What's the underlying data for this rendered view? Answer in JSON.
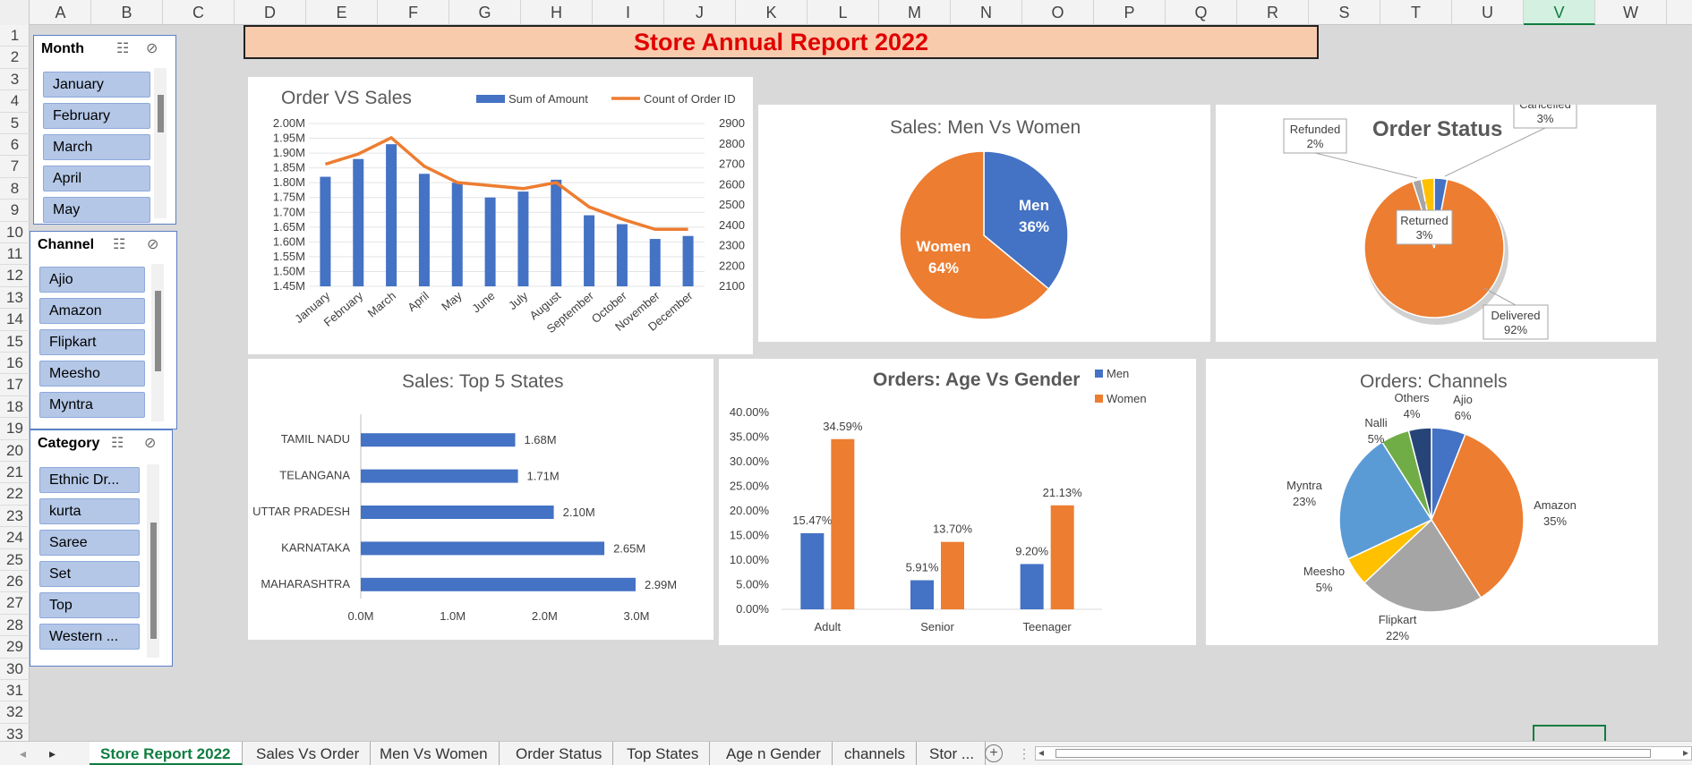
{
  "columns": [
    "A",
    "B",
    "C",
    "D",
    "E",
    "F",
    "G",
    "H",
    "I",
    "J",
    "K",
    "L",
    "M",
    "N",
    "O",
    "P",
    "Q",
    "R",
    "S",
    "T",
    "U",
    "V",
    "W"
  ],
  "selected_column": "V",
  "rows": [
    "1",
    "2",
    "3",
    "4",
    "5",
    "6",
    "7",
    "8",
    "9",
    "10",
    "11",
    "12",
    "13",
    "14",
    "15",
    "16",
    "17",
    "18",
    "19",
    "20",
    "21",
    "22",
    "23",
    "24",
    "25",
    "26",
    "27",
    "28",
    "29",
    "30",
    "31",
    "32",
    "33"
  ],
  "report_title": "Store Annual Report 2022",
  "slicers": {
    "month": {
      "title": "Month",
      "items": [
        "January",
        "February",
        "March",
        "April",
        "May"
      ]
    },
    "channel": {
      "title": "Channel",
      "items": [
        "Ajio",
        "Amazon",
        "Flipkart",
        "Meesho",
        "Myntra"
      ]
    },
    "category": {
      "title": "Category",
      "items": [
        "Ethnic Dr...",
        "kurta",
        "Saree",
        "Set",
        "Top",
        "Western ..."
      ]
    }
  },
  "chart_data": [
    {
      "id": "order_vs_sales",
      "type": "bar+line",
      "title": "Order VS Sales",
      "categories": [
        "January",
        "February",
        "March",
        "April",
        "May",
        "June",
        "July",
        "August",
        "September",
        "October",
        "November",
        "December"
      ],
      "series": [
        {
          "name": "Sum of Amount",
          "type": "bar",
          "axis": "left",
          "values": [
            1.82,
            1.88,
            1.93,
            1.83,
            1.8,
            1.75,
            1.77,
            1.81,
            1.69,
            1.66,
            1.61,
            1.62
          ]
        },
        {
          "name": "Count of Order ID",
          "type": "line",
          "axis": "right",
          "values": [
            2700,
            2750,
            2830,
            2690,
            2610,
            2595,
            2580,
            2610,
            2490,
            2430,
            2380,
            2380
          ]
        }
      ],
      "y_left_ticks": [
        "2.00M",
        "1.95M",
        "1.90M",
        "1.85M",
        "1.80M",
        "1.75M",
        "1.70M",
        "1.65M",
        "1.60M",
        "1.55M",
        "1.50M",
        "1.45M"
      ],
      "y_left_range": [
        1.45,
        2.0
      ],
      "y_right_ticks": [
        "2900",
        "2800",
        "2700",
        "2600",
        "2500",
        "2400",
        "2300",
        "2200",
        "2100"
      ],
      "y_right_range": [
        2100,
        2900
      ],
      "bar_color": "#4472c4",
      "line_color": "#ed7d31",
      "legend": "top"
    },
    {
      "id": "men_vs_women",
      "type": "pie",
      "title": "Sales: Men Vs Women",
      "slices": [
        {
          "label": "Men",
          "value": 36,
          "text": "36%",
          "color": "#4472c4"
        },
        {
          "label": "Women",
          "value": 64,
          "text": "64%",
          "color": "#ed7d31"
        }
      ]
    },
    {
      "id": "order_status",
      "type": "pie",
      "title": "Order Status",
      "slices": [
        {
          "label": "Cancelled",
          "value": 3,
          "text": "3%",
          "color": "#4472c4"
        },
        {
          "label": "Delivered",
          "value": 92,
          "text": "92%",
          "color": "#ed7d31"
        },
        {
          "label": "Refunded",
          "value": 2,
          "text": "2%",
          "color": "#a5a5a5"
        },
        {
          "label": "Returned",
          "value": 3,
          "text": "3%",
          "color": "#ffc000"
        }
      ]
    },
    {
      "id": "top_states",
      "type": "bar",
      "orientation": "horizontal",
      "title": "Sales: Top 5 States",
      "categories": [
        "TAMIL NADU",
        "TELANGANA",
        "UTTAR PRADESH",
        "KARNATAKA",
        "MAHARASHTRA"
      ],
      "values": [
        1.68,
        1.71,
        2.1,
        2.65,
        2.99
      ],
      "labels": [
        "1.68M",
        "1.71M",
        "2.10M",
        "2.65M",
        "2.99M"
      ],
      "x_ticks": [
        "0.0M",
        "1.0M",
        "2.0M",
        "3.0M"
      ],
      "x_range": [
        0,
        3.0
      ],
      "color": "#4472c4"
    },
    {
      "id": "age_vs_gender",
      "type": "bar",
      "title": "Orders: Age Vs Gender",
      "categories": [
        "Adult",
        "Senior",
        "Teenager"
      ],
      "series": [
        {
          "name": "Men",
          "values": [
            15.47,
            5.91,
            9.2
          ],
          "labels": [
            "15.47%",
            "5.91%",
            "9.20%"
          ],
          "color": "#4472c4"
        },
        {
          "name": "Women",
          "values": [
            34.59,
            13.7,
            21.13
          ],
          "labels": [
            "34.59%",
            "13.70%",
            "21.13%"
          ],
          "color": "#ed7d31"
        }
      ],
      "y_ticks": [
        "40.00%",
        "35.00%",
        "30.00%",
        "25.00%",
        "20.00%",
        "15.00%",
        "10.00%",
        "5.00%",
        "0.00%"
      ],
      "y_range": [
        0,
        40
      ],
      "legend": "top-right"
    },
    {
      "id": "channels",
      "type": "pie",
      "title": "Orders: Channels",
      "slices": [
        {
          "label": "Ajio",
          "value": 6,
          "text": "6%",
          "color": "#4472c4"
        },
        {
          "label": "Amazon",
          "value": 35,
          "text": "35%",
          "color": "#ed7d31"
        },
        {
          "label": "Flipkart",
          "value": 22,
          "text": "22%",
          "color": "#a5a5a5"
        },
        {
          "label": "Meesho",
          "value": 5,
          "text": "5%",
          "color": "#ffc000"
        },
        {
          "label": "Myntra",
          "value": 23,
          "text": "23%",
          "color": "#5b9bd5"
        },
        {
          "label": "Nalli",
          "value": 5,
          "text": "5%",
          "color": "#70ad47"
        },
        {
          "label": "Others",
          "value": 4,
          "text": "4%",
          "color": "#264478"
        }
      ]
    }
  ],
  "tabs": [
    "Store Report 2022",
    "Sales Vs Order",
    "Men Vs Women",
    "Order Status",
    "Top States",
    "Age n Gender",
    "channels",
    "Stor ..."
  ],
  "active_tab": "Store Report 2022"
}
